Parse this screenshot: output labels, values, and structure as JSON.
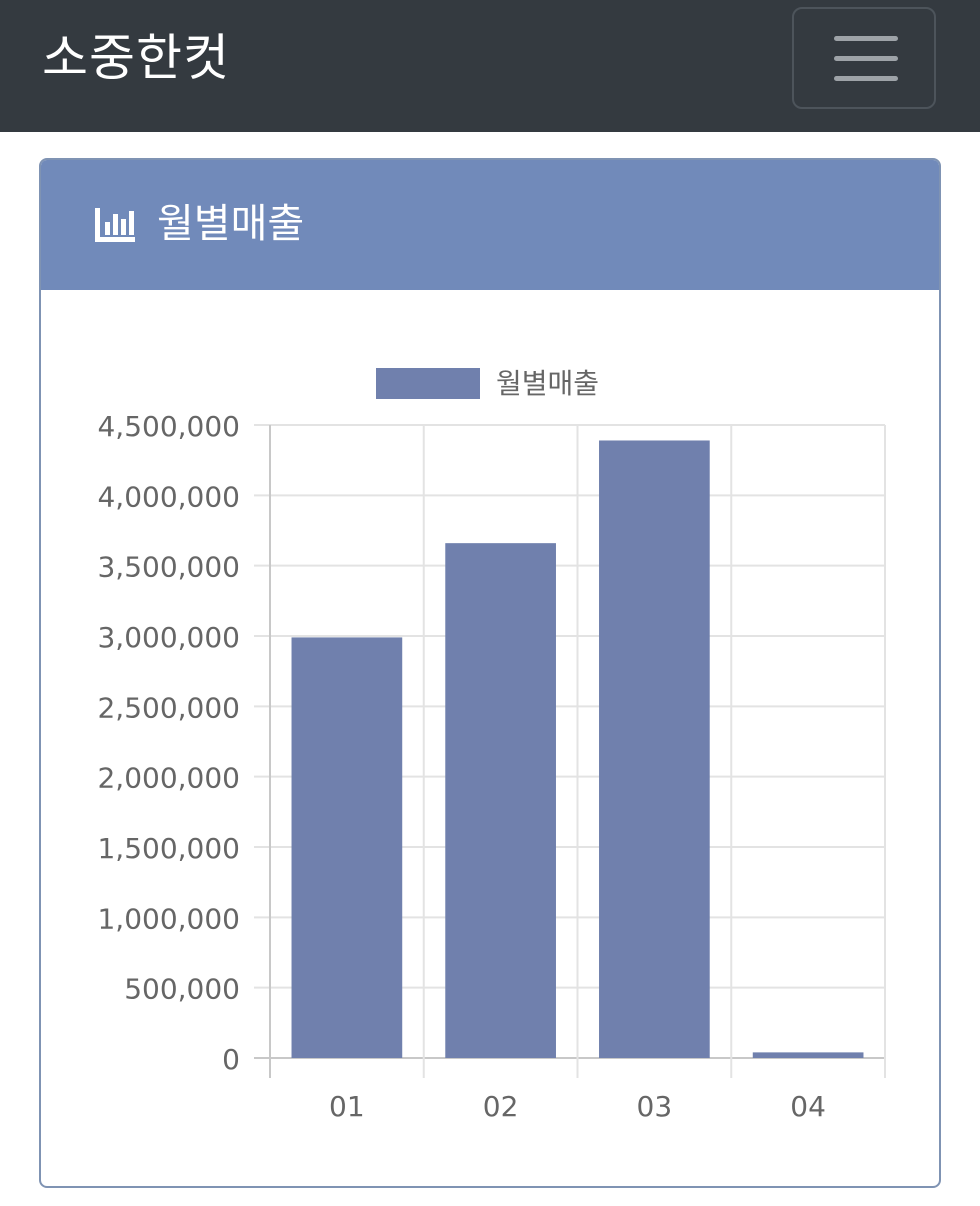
{
  "navbar": {
    "brand": "소중한컷",
    "menu_icon": "hamburger-menu-icon"
  },
  "card": {
    "header_icon": "bar-chart-icon",
    "header_title": "월별매출"
  },
  "colors": {
    "navbar_bg": "#343a40",
    "card_header_bg": "#718aba",
    "bar_fill": "#7080ad",
    "grid": "#e3e3e3"
  },
  "chart_data": {
    "type": "bar",
    "categories": [
      "01",
      "02",
      "03",
      "04"
    ],
    "series": [
      {
        "name": "월별매출",
        "values": [
          2990000,
          3660000,
          4390000,
          40000
        ]
      }
    ],
    "yticks": [
      "0",
      "500,000",
      "1,000,000",
      "1,500,000",
      "2,000,000",
      "2,500,000",
      "3,000,000",
      "3,500,000",
      "4,000,000",
      "4,500,000"
    ],
    "ylim": [
      0,
      4500000
    ],
    "ytick_step": 500000,
    "legend": "top",
    "grid": true
  }
}
